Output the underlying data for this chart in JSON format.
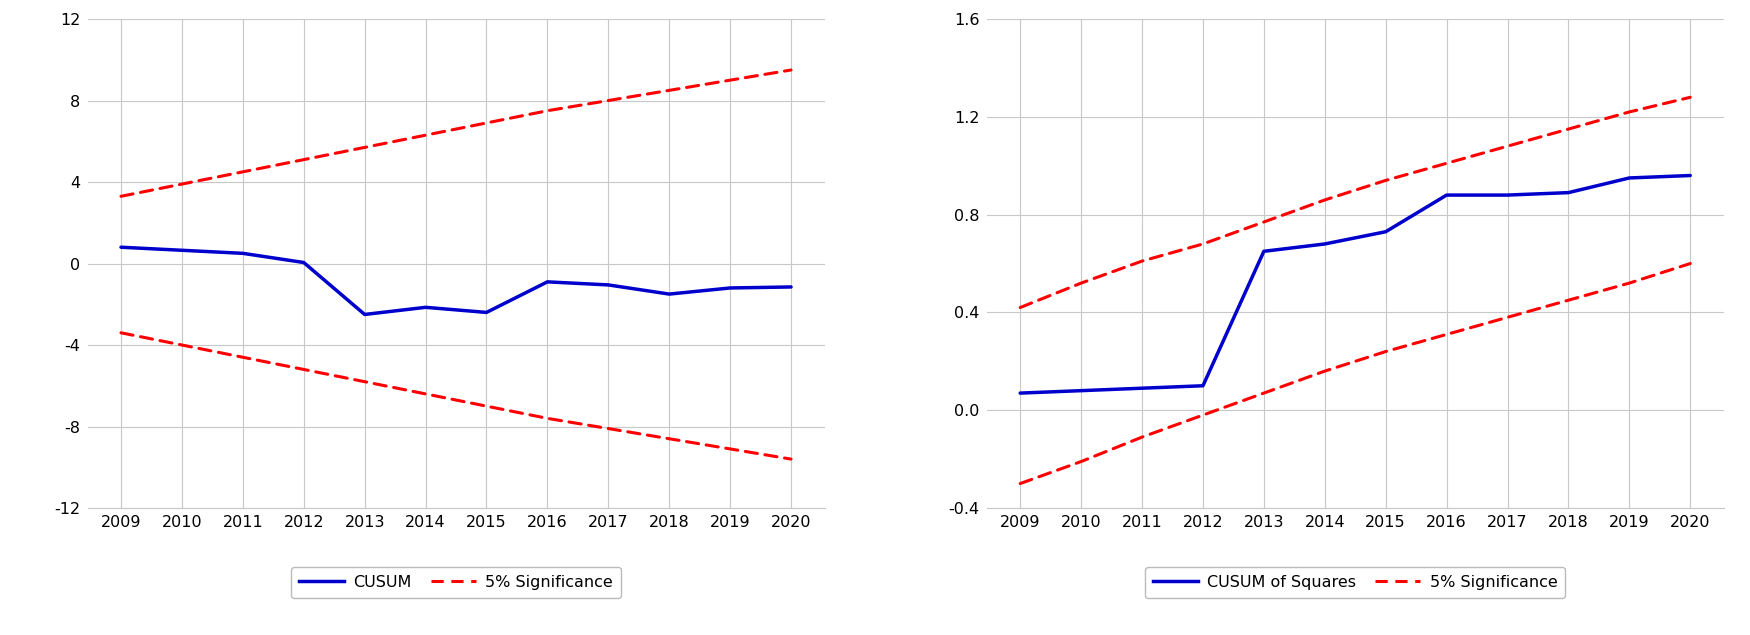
{
  "years": [
    2009,
    2010,
    2011,
    2012,
    2013,
    2014,
    2015,
    2016,
    2017,
    2018,
    2019,
    2020
  ],
  "cusum_values": [
    0.8,
    0.65,
    0.5,
    0.05,
    -2.5,
    -2.15,
    -2.4,
    -0.9,
    -1.05,
    -1.5,
    -1.2,
    -1.15
  ],
  "cusum_upper": [
    3.3,
    3.9,
    4.5,
    5.1,
    5.7,
    6.3,
    6.9,
    7.5,
    8.0,
    8.5,
    9.0,
    9.5
  ],
  "cusum_lower": [
    -3.4,
    -4.0,
    -4.6,
    -5.2,
    -5.8,
    -6.4,
    -7.0,
    -7.6,
    -8.1,
    -8.6,
    -9.1,
    -9.6
  ],
  "cusumsq_values": [
    0.07,
    0.08,
    0.09,
    0.1,
    0.65,
    0.68,
    0.73,
    0.88,
    0.88,
    0.89,
    0.95,
    0.96
  ],
  "cusumsq_upper": [
    0.42,
    0.52,
    0.61,
    0.68,
    0.77,
    0.86,
    0.94,
    1.01,
    1.08,
    1.15,
    1.22,
    1.28
  ],
  "cusumsq_lower": [
    -0.3,
    -0.21,
    -0.11,
    -0.02,
    0.07,
    0.16,
    0.24,
    0.31,
    0.38,
    0.45,
    0.52,
    0.6
  ],
  "cusum_ylim": [
    -12,
    12
  ],
  "cusum_yticks": [
    -12,
    -8,
    -4,
    0,
    4,
    8,
    12
  ],
  "cusumsq_ylim": [
    -0.4,
    1.6
  ],
  "cusumsq_yticks": [
    -0.4,
    0.0,
    0.4,
    0.8,
    1.2,
    1.6
  ],
  "blue_color": "#0000cc",
  "red_color": "#ff0000",
  "legend_label_cusum": "CUSUM",
  "legend_label_cusumsq": "CUSUM of Squares",
  "legend_label_sig": "5% Significance",
  "bg_color": "#ffffff",
  "grid_color": "#c8c8c8"
}
